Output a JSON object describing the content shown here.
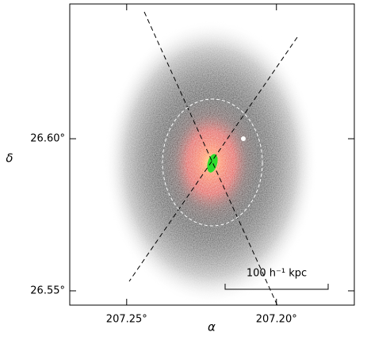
{
  "chart_data": {
    "type": "image",
    "x_label": "α",
    "y_label": "δ",
    "xlim": [
      207.269,
      207.174
    ],
    "ylim": [
      26.5453,
      26.6443
    ],
    "xticks": [
      {
        "value": 207.25,
        "label": "207.25°"
      },
      {
        "value": 207.2,
        "label": "207.20°"
      }
    ],
    "yticks": [
      {
        "value": 26.55,
        "label": "26.55°"
      },
      {
        "value": 26.6,
        "label": "26.60°"
      }
    ],
    "annotation": "100 h⁻¹ kpc"
  }
}
